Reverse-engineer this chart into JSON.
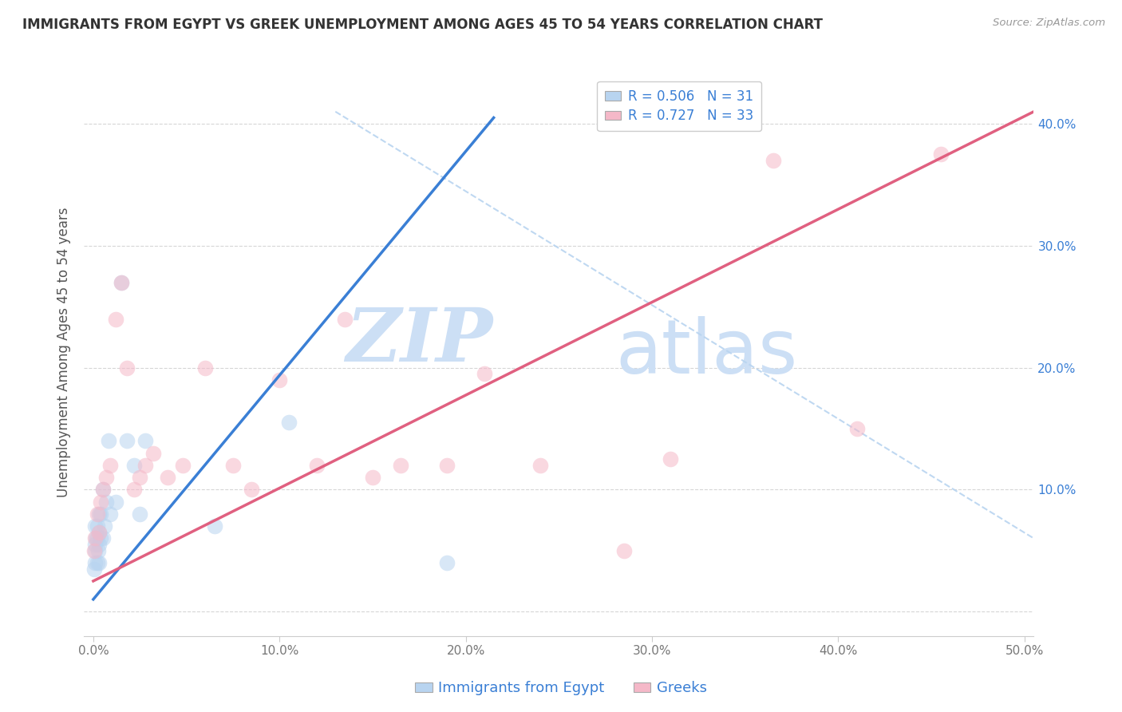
{
  "title": "IMMIGRANTS FROM EGYPT VS GREEK UNEMPLOYMENT AMONG AGES 45 TO 54 YEARS CORRELATION CHART",
  "source": "Source: ZipAtlas.com",
  "ylabel": "Unemployment Among Ages 45 to 54 years",
  "xlim": [
    -0.005,
    0.505
  ],
  "ylim": [
    -0.02,
    0.445
  ],
  "xticks": [
    0.0,
    0.1,
    0.2,
    0.3,
    0.4,
    0.5
  ],
  "yticks": [
    0.0,
    0.1,
    0.2,
    0.3,
    0.4
  ],
  "xtick_labels": [
    "0.0%",
    "10.0%",
    "20.0%",
    "30.0%",
    "40.0%",
    "50.0%"
  ],
  "ytick_labels_right": [
    "",
    "10.0%",
    "20.0%",
    "30.0%",
    "40.0%"
  ],
  "legend_entries": [
    {
      "label": "R = 0.506   N = 31",
      "color": "#b8d4f0"
    },
    {
      "label": "R = 0.727   N = 33",
      "color": "#f5b8c8"
    }
  ],
  "bottom_legend": [
    {
      "label": "Immigrants from Egypt",
      "color": "#b8d4f0"
    },
    {
      "label": "Greeks",
      "color": "#f5b8c8"
    }
  ],
  "blue_scatter_x": [
    0.0005,
    0.001,
    0.001,
    0.001,
    0.001,
    0.0015,
    0.002,
    0.002,
    0.002,
    0.0025,
    0.003,
    0.003,
    0.003,
    0.003,
    0.004,
    0.004,
    0.005,
    0.005,
    0.006,
    0.007,
    0.008,
    0.009,
    0.012,
    0.015,
    0.018,
    0.022,
    0.025,
    0.028,
    0.065,
    0.105,
    0.19
  ],
  "blue_scatter_y": [
    0.035,
    0.04,
    0.05,
    0.055,
    0.07,
    0.06,
    0.04,
    0.06,
    0.07,
    0.05,
    0.04,
    0.055,
    0.065,
    0.08,
    0.06,
    0.08,
    0.06,
    0.1,
    0.07,
    0.09,
    0.14,
    0.08,
    0.09,
    0.27,
    0.14,
    0.12,
    0.08,
    0.14,
    0.07,
    0.155,
    0.04
  ],
  "pink_scatter_x": [
    0.0005,
    0.001,
    0.002,
    0.003,
    0.004,
    0.005,
    0.007,
    0.009,
    0.012,
    0.015,
    0.018,
    0.022,
    0.025,
    0.028,
    0.032,
    0.04,
    0.048,
    0.06,
    0.075,
    0.085,
    0.1,
    0.12,
    0.135,
    0.15,
    0.165,
    0.19,
    0.21,
    0.24,
    0.285,
    0.31,
    0.365,
    0.41,
    0.455
  ],
  "pink_scatter_y": [
    0.05,
    0.06,
    0.08,
    0.065,
    0.09,
    0.1,
    0.11,
    0.12,
    0.24,
    0.27,
    0.2,
    0.1,
    0.11,
    0.12,
    0.13,
    0.11,
    0.12,
    0.2,
    0.12,
    0.1,
    0.19,
    0.12,
    0.24,
    0.11,
    0.12,
    0.12,
    0.195,
    0.12,
    0.05,
    0.125,
    0.37,
    0.15,
    0.375
  ],
  "blue_line_color": "#3a7fd5",
  "pink_line_color": "#e06080",
  "blue_scatter_color": "#b8d4f0",
  "pink_scatter_color": "#f5b8c8",
  "grid_color": "#cccccc",
  "watermark_zip": "ZIP",
  "watermark_atlas": "atlas",
  "watermark_color": "#ccdff5",
  "watermark_fontsize_zip": 68,
  "watermark_fontsize_atlas": 68,
  "title_fontsize": 12,
  "axis_label_fontsize": 12,
  "tick_fontsize": 11,
  "legend_fontsize": 12,
  "scatter_size": 200,
  "scatter_alpha": 0.55,
  "blue_line_x0": 0.0,
  "blue_line_x1": 0.215,
  "blue_line_y0": 0.01,
  "blue_line_y1": 0.405,
  "pink_line_x0": 0.0,
  "pink_line_x1": 0.505,
  "pink_line_y0": 0.025,
  "pink_line_y1": 0.41,
  "diag_line_x": [
    0.13,
    0.505
  ],
  "diag_line_y": [
    0.41,
    0.06
  ],
  "diag_line_color": "#b8d4f0",
  "tick_color_right": "#3a7fd5",
  "tick_color_x": "#777777"
}
